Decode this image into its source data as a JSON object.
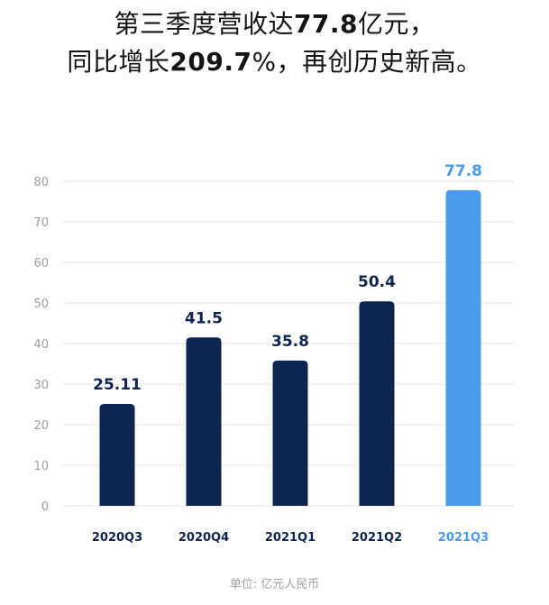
{
  "headline": {
    "line1_prefix": "第三季度营收达",
    "line1_value": "77.8",
    "line1_suffix": "亿元，",
    "line2_prefix": "同比增长",
    "line2_value": "209.7",
    "line2_suffix": "%，再创历史新高。"
  },
  "unit_note": "单位: 亿元人民币",
  "colors": {
    "bar_default": "#0d2350",
    "bar_highlight": "#4a9aee",
    "label_default": "#0d2350",
    "label_highlight": "#4a9aee",
    "grid": "#e3e6ea",
    "tick_text": "#9aa0a6",
    "headline_text": "#141414"
  },
  "chart_data": {
    "type": "bar",
    "categories": [
      "2020Q3",
      "2020Q4",
      "2021Q1",
      "2021Q2",
      "2021Q3"
    ],
    "values": [
      25.11,
      41.5,
      35.8,
      50.4,
      77.8
    ],
    "value_labels": [
      "25.11",
      "41.5",
      "35.8",
      "50.4",
      "77.8"
    ],
    "highlight_index": 4,
    "ylim": [
      0,
      80
    ],
    "yticks": [
      0,
      10,
      20,
      30,
      40,
      50,
      60,
      70,
      80
    ],
    "grid": true,
    "title": "",
    "xlabel": "",
    "ylabel": ""
  }
}
